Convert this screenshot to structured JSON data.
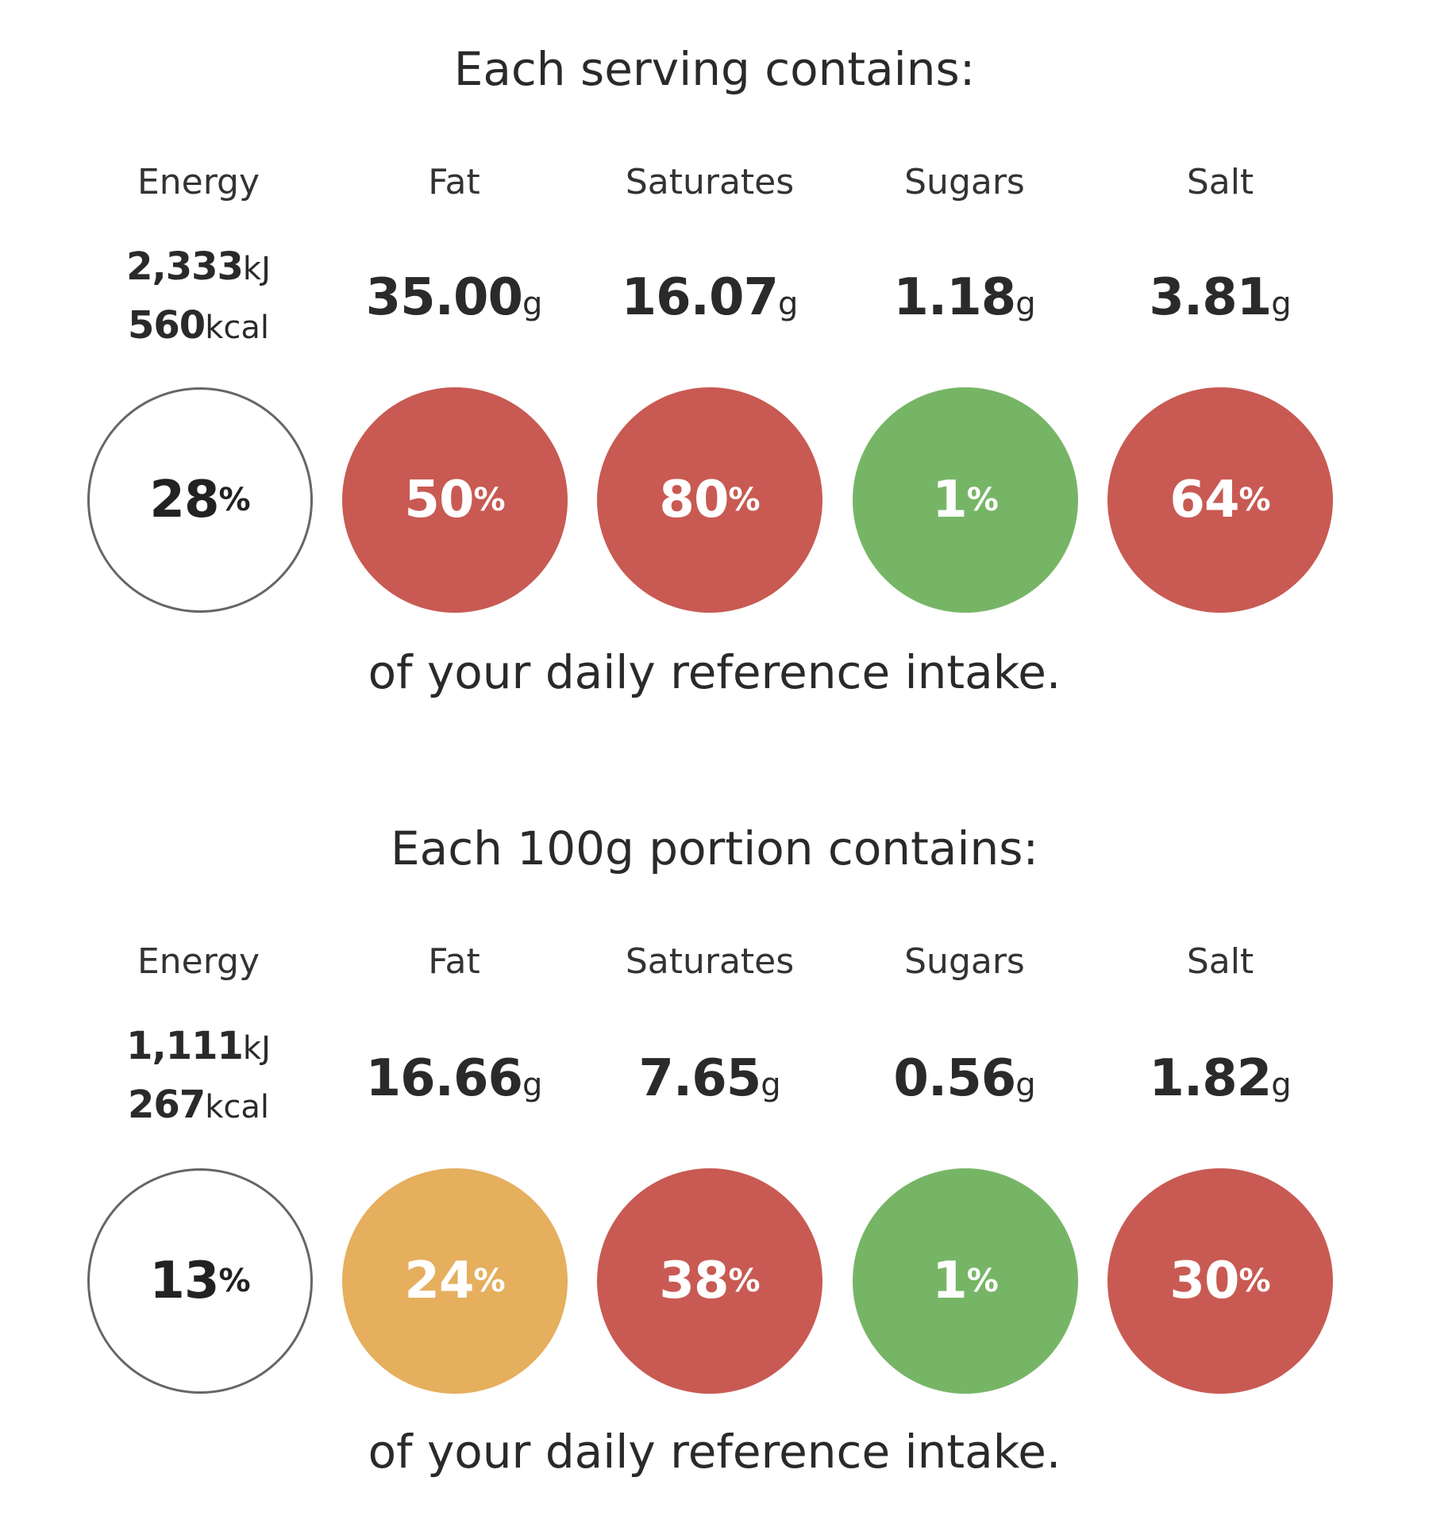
{
  "sections": [
    {
      "title": "Each serving contains:",
      "footer": "of your daily reference intake.",
      "energy": {
        "label": "Energy",
        "kj": "2,333",
        "kj_unit": "kJ",
        "kcal": "560",
        "kcal_unit": "kcal",
        "percent": "28",
        "percent_unit": "%"
      },
      "nutrients": [
        {
          "label": "Fat",
          "value": "35.00",
          "unit": "g",
          "percent": "50",
          "percent_unit": "%",
          "color": "#c85a53"
        },
        {
          "label": "Saturates",
          "value": "16.07",
          "unit": "g",
          "percent": "80",
          "percent_unit": "%",
          "color": "#c85a53"
        },
        {
          "label": "Sugars",
          "value": "1.18",
          "unit": "g",
          "percent": "1",
          "percent_unit": "%",
          "color": "#77b566"
        },
        {
          "label": "Salt",
          "value": "3.81",
          "unit": "g",
          "percent": "64",
          "percent_unit": "%",
          "color": "#c85a53"
        }
      ]
    },
    {
      "title": "Each 100g portion contains:",
      "footer": "of your daily reference intake.",
      "energy": {
        "label": "Energy",
        "kj": "1,111",
        "kj_unit": "kJ",
        "kcal": "267",
        "kcal_unit": "kcal",
        "percent": "13",
        "percent_unit": "%"
      },
      "nutrients": [
        {
          "label": "Fat",
          "value": "16.66",
          "unit": "g",
          "percent": "24",
          "percent_unit": "%",
          "color": "#e5af5e"
        },
        {
          "label": "Saturates",
          "value": "7.65",
          "unit": "g",
          "percent": "38",
          "percent_unit": "%",
          "color": "#c85a53"
        },
        {
          "label": "Sugars",
          "value": "0.56",
          "unit": "g",
          "percent": "1",
          "percent_unit": "%",
          "color": "#77b566"
        },
        {
          "label": "Salt",
          "value": "1.82",
          "unit": "g",
          "percent": "30",
          "percent_unit": "%",
          "color": "#c85a53"
        }
      ]
    }
  ]
}
